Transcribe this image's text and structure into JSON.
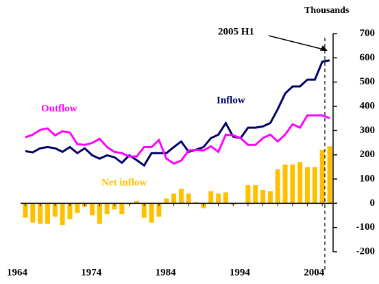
{
  "chart_data": {
    "type": "bar",
    "y_label": "Thousands",
    "annotations": [
      "2005 H1"
    ],
    "categories": [
      "1964",
      null,
      null,
      null,
      null,
      null,
      null,
      null,
      null,
      null,
      "1974",
      null,
      null,
      null,
      null,
      null,
      null,
      null,
      null,
      null,
      "1984",
      null,
      null,
      null,
      null,
      null,
      null,
      null,
      null,
      null,
      "1994",
      null,
      null,
      null,
      null,
      null,
      null,
      null,
      null,
      null,
      "2004",
      null
    ],
    "series": [
      {
        "name": "Inflow",
        "type": "line",
        "color": "#000066",
        "values": [
          215,
          210,
          227,
          232,
          227,
          212,
          232,
          207,
          227,
          198,
          184,
          198,
          190,
          167,
          198,
          178,
          156,
          207,
          207,
          207,
          232,
          255,
          212,
          221,
          232,
          269,
          283,
          331,
          275,
          269,
          312,
          312,
          317,
          331,
          388,
          453,
          482,
          482,
          510,
          510,
          584,
          590
        ]
      },
      {
        "name": "Outflow",
        "type": "line",
        "color": "#ff00ff",
        "values": [
          272,
          283,
          303,
          309,
          280,
          297,
          292,
          244,
          241,
          249,
          266,
          232,
          212,
          207,
          193,
          193,
          232,
          232,
          261,
          184,
          164,
          176,
          218,
          221,
          218,
          235,
          212,
          283,
          280,
          269,
          241,
          241,
          269,
          283,
          255,
          283,
          326,
          312,
          363,
          363,
          363,
          351
        ]
      },
      {
        "name": "Net inflow",
        "type": "bar",
        "color": "#ffc000",
        "values": [
          -60,
          -80,
          -85,
          -85,
          -55,
          -90,
          -65,
          -40,
          -15,
          -50,
          -85,
          -45,
          -25,
          -45,
          -5,
          10,
          -60,
          -80,
          -55,
          20,
          40,
          60,
          40,
          5,
          -20,
          50,
          40,
          45,
          -5,
          0,
          75,
          75,
          55,
          50,
          140,
          160,
          160,
          170,
          150,
          150,
          220,
          235
        ]
      }
    ],
    "ylim": [
      -200,
      700
    ],
    "yticks": [
      -200,
      -100,
      0,
      100,
      200,
      300,
      400,
      500,
      600,
      700
    ]
  }
}
